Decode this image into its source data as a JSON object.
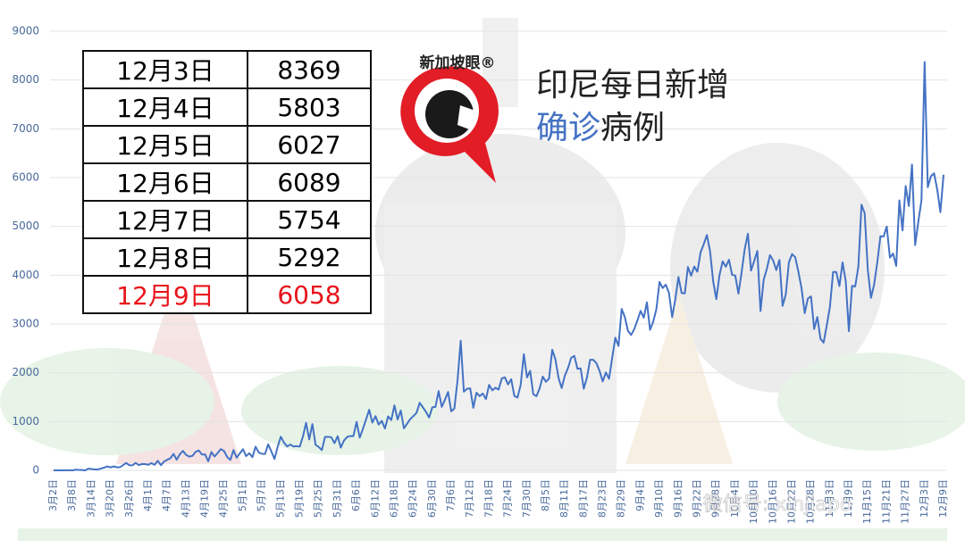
{
  "logo": "新加坡眼®",
  "watermark": "微信号: xinjiapo",
  "title_line1": "印尼每日新增",
  "title_line2": [
    "确诊",
    "病例"
  ],
  "table": {
    "rows": [
      [
        "12月3日",
        8369
      ],
      [
        "12月4日",
        5803
      ],
      [
        "12月5日",
        6027
      ],
      [
        "12月6日",
        6089
      ],
      [
        "12月7日",
        5754
      ],
      [
        "12月8日",
        5292
      ],
      [
        "12月9日",
        6058
      ]
    ]
  },
  "chart_data": {
    "type": "line",
    "color": "#4472c4",
    "grid": true,
    "ylim": [
      0,
      9000
    ],
    "yticks": [
      0,
      1000,
      2000,
      3000,
      4000,
      5000,
      6000,
      7000,
      8000,
      9000
    ],
    "categories": [
      "3月2日",
      null,
      null,
      null,
      null,
      null,
      "3月8日",
      null,
      null,
      null,
      null,
      null,
      "3月14日",
      null,
      null,
      null,
      null,
      null,
      "3月20日",
      null,
      null,
      null,
      null,
      null,
      "3月26日",
      null,
      null,
      null,
      null,
      null,
      "4月1日",
      null,
      null,
      null,
      null,
      null,
      "4月7日",
      null,
      null,
      null,
      null,
      null,
      "4月13日",
      null,
      null,
      null,
      null,
      null,
      "4月19日",
      null,
      null,
      null,
      null,
      null,
      "4月25日",
      null,
      null,
      null,
      null,
      null,
      "5月1日",
      null,
      null,
      null,
      null,
      null,
      "5月7日",
      null,
      null,
      null,
      null,
      null,
      "5月13日",
      null,
      null,
      null,
      null,
      null,
      "5月19日",
      null,
      null,
      null,
      null,
      null,
      "5月25日",
      null,
      null,
      null,
      null,
      null,
      "5月31日",
      null,
      null,
      null,
      null,
      null,
      "6月6日",
      null,
      null,
      null,
      null,
      null,
      "6月12日",
      null,
      null,
      null,
      null,
      null,
      "6月18日",
      null,
      null,
      null,
      null,
      null,
      "6月24日",
      null,
      null,
      null,
      null,
      null,
      "6月30日",
      null,
      null,
      null,
      null,
      null,
      "7月6日",
      null,
      null,
      null,
      null,
      null,
      "7月12日",
      null,
      null,
      null,
      null,
      null,
      "7月18日",
      null,
      null,
      null,
      null,
      null,
      "7月24日",
      null,
      null,
      null,
      null,
      null,
      "7月30日",
      null,
      null,
      null,
      null,
      null,
      "8月5日",
      null,
      null,
      null,
      null,
      null,
      "8月11日",
      null,
      null,
      null,
      null,
      null,
      "8月17日",
      null,
      null,
      null,
      null,
      null,
      "8月23日",
      null,
      null,
      null,
      null,
      null,
      "8月29日",
      null,
      null,
      null,
      null,
      null,
      "9月4日",
      null,
      null,
      null,
      null,
      null,
      "9月10日",
      null,
      null,
      null,
      null,
      null,
      "9月16日",
      null,
      null,
      null,
      null,
      null,
      "9月22日",
      null,
      null,
      null,
      null,
      null,
      "9月28日",
      null,
      null,
      null,
      null,
      null,
      "10月4日",
      null,
      null,
      null,
      null,
      null,
      "10月10日",
      null,
      null,
      null,
      null,
      null,
      "10月16日",
      null,
      null,
      null,
      null,
      null,
      "10月22日",
      null,
      null,
      null,
      null,
      null,
      "10月28日",
      null,
      null,
      null,
      null,
      null,
      "11月3日",
      null,
      null,
      null,
      null,
      null,
      "11月9日",
      null,
      null,
      null,
      null,
      null,
      "11月15日",
      null,
      null,
      null,
      null,
      null,
      "11月21日",
      null,
      null,
      null,
      null,
      null,
      "11月27日",
      null,
      null,
      null,
      null,
      null,
      "12月3日",
      null,
      null,
      null,
      null,
      null,
      "12月9日"
    ],
    "values": [
      2,
      0,
      0,
      0,
      2,
      2,
      0,
      13,
      8,
      7,
      0,
      35,
      27,
      21,
      17,
      38,
      55,
      82,
      60,
      81,
      64,
      65,
      106,
      153,
      104,
      103,
      153,
      109,
      130,
      129,
      114,
      149,
      113,
      196,
      106,
      181,
      218,
      247,
      337,
      219,
      330,
      399,
      316,
      282,
      297,
      380,
      407,
      325,
      327,
      185,
      375,
      283,
      357,
      436,
      396,
      275,
      214,
      415,
      260,
      347,
      433,
      292,
      349,
      271,
      484,
      367,
      338,
      336,
      533,
      387,
      233,
      484,
      689,
      568,
      490,
      529,
      489,
      496,
      486,
      693,
      973,
      634,
      949,
      526,
      479,
      415,
      686,
      687,
      678,
      557,
      700,
      467,
      609,
      684,
      703,
      703,
      993,
      672,
      847,
      1043,
      1241,
      979,
      1111,
      938,
      1014,
      857,
      1106,
      1031,
      1331,
      1041,
      1226,
      862,
      954,
      1051,
      1113,
      1178,
      1385,
      1294,
      1198,
      1082,
      1293,
      1300,
      1624,
      1301,
      1447,
      1607,
      1209,
      1268,
      1853,
      2657,
      1611,
      1671,
      1681,
      1282,
      1591,
      1522,
      1574,
      1462,
      1752,
      1639,
      1693,
      1655,
      1882,
      1906,
      1761,
      1868,
      1525,
      1492,
      1748,
      2381,
      1904,
      2040,
      1560,
      1519,
      1679,
      1922,
      1815,
      1882,
      2473,
      2277,
      1893,
      1687,
      1942,
      2098,
      2307,
      2345,
      2081,
      2090,
      1673,
      1902,
      2266,
      2266,
      2197,
      2037,
      1823,
      2006,
      1877,
      2306,
      2719,
      2549,
      3308,
      3142,
      2858,
      2775,
      2896,
      3075,
      3269,
      3128,
      3444,
      2880,
      3046,
      3307,
      3861,
      3737,
      3806,
      3636,
      3141,
      3507,
      3963,
      3635,
      3627,
      4168,
      3989,
      4176,
      4071,
      4465,
      4634,
      4823,
      4494,
      3874,
      3509,
      4002,
      4284,
      4174,
      4317,
      4007,
      3992,
      3622,
      4056,
      4538,
      4850,
      4094,
      4294,
      4497,
      3267,
      3906,
      4127,
      4411,
      4301,
      4105,
      4313,
      3373,
      3602,
      4267,
      4432,
      4369,
      4070,
      3732,
      3222,
      3520,
      3565,
      2897,
      3143,
      2696,
      2618,
      2973,
      3356,
      4065,
      4065,
      3778,
      4262,
      3880,
      2853,
      3779,
      3770,
      4173,
      5444,
      5272,
      4106,
      3535,
      3807,
      4265,
      4798,
      4792,
      4998,
      4360,
      4442,
      4192,
      5534,
      4917,
      5828,
      5418,
      6267,
      4617,
      5092,
      5533,
      8369,
      5803,
      6027,
      6089,
      5754,
      5292,
      6058
    ]
  }
}
